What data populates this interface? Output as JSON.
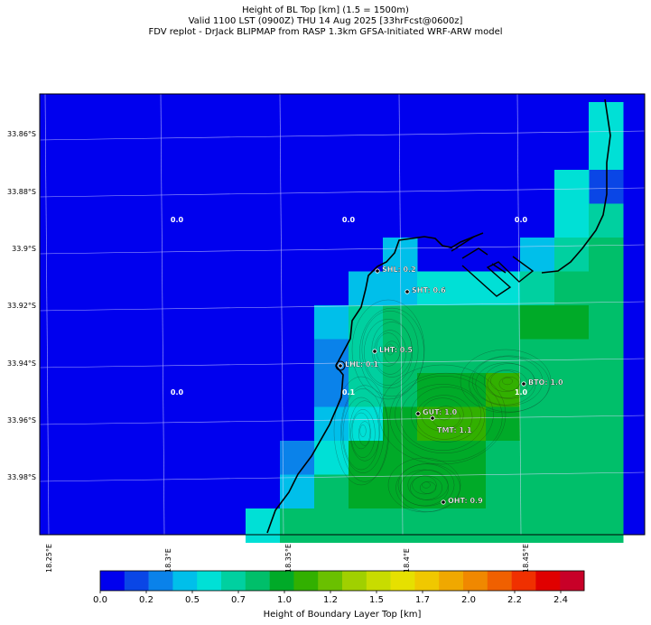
{
  "header": {
    "line1": "Height of BL Top [km] (1.5 = 1500m)",
    "line2": "Valid 1100 LST (0900Z) THU 14 Aug 2025 [33hrFcst@0600z]",
    "line3": "FDV replot - DrJack BLIPMAP from RASP 1.3km GFSA-Initiated WRF-ARW model"
  },
  "axes": {
    "lat_labels": [
      "33.86°S",
      "33.88°S",
      "33.9°S",
      "33.92°S",
      "33.94°S",
      "33.96°S",
      "33.98°S"
    ],
    "lon_labels": [
      "18.25°E",
      "18.3°E",
      "18.35°E",
      "18.4°E",
      "18.45°E"
    ]
  },
  "grid_values": [
    {
      "text": "0.0"
    },
    {
      "text": "0.0"
    },
    {
      "text": "0.0"
    },
    {
      "text": "0.0"
    },
    {
      "text": "0.1"
    },
    {
      "text": "1.0"
    }
  ],
  "stations": [
    {
      "label": "SHL: 0.2"
    },
    {
      "label": "SHT: 0.6"
    },
    {
      "label": "LHT: 0.5"
    },
    {
      "label": "LHL: 0.1"
    },
    {
      "label": "BTO: 1.0"
    },
    {
      "label": "GUT: 1.0"
    },
    {
      "label": "TMT: 1.1"
    },
    {
      "label": "OHT: 0.9"
    }
  ],
  "colorbar": {
    "title": "Height of Boundary Layer Top [km]",
    "colors": [
      "#0000ee",
      "#0a46e6",
      "#0a82ea",
      "#00bfea",
      "#00e0d6",
      "#00d0a0",
      "#00bf6a",
      "#00aa28",
      "#32b000",
      "#6ac000",
      "#a0d000",
      "#c8dc00",
      "#e6e000",
      "#f0c800",
      "#f0a800",
      "#f08800",
      "#f06000",
      "#f03000",
      "#e00000",
      "#c80028"
    ],
    "tick_labels": [
      "0.0",
      "0.2",
      "0.5",
      "0.7",
      "1.0",
      "1.2",
      "1.5",
      "1.7",
      "2.0",
      "2.2",
      "2.4"
    ]
  },
  "legend_values": {
    "level_colors": {
      "0.0": "#0000ee",
      "0.1": "#0a46e6",
      "0.2": "#0a82ea",
      "0.3": "#00bfea",
      "0.4": "#00e0d6",
      "0.6": "#00d0a0",
      "0.7": "#00bf6a",
      "0.9": "#00aa28",
      "1.1": "#32b000"
    }
  }
}
